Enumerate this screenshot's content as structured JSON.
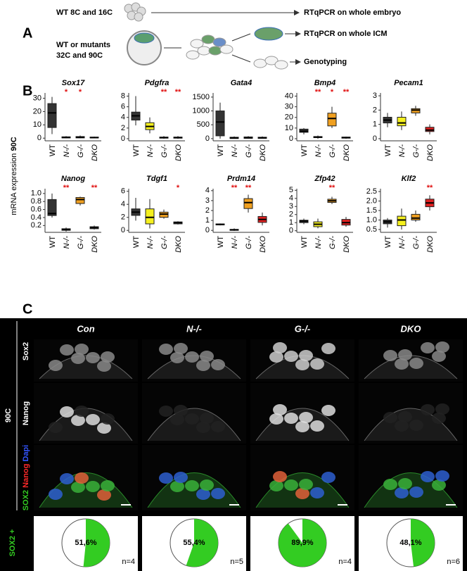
{
  "panel_a": {
    "label": "A",
    "row1_stage": "WT 8C and 16C",
    "row1_target": "RTqPCR on whole embryo",
    "row2_stage_1": "WT or mutants",
    "row2_stage_2": "32C and 90C",
    "icm_target": "RTqPCR on whole ICM",
    "geno_target": "Genotyping"
  },
  "panel_b": {
    "label": "B",
    "y_label": "mRNA expression",
    "y_label_stage": "90C"
  },
  "chart_data": [
    {
      "type": "box",
      "title": "Sox17",
      "categories": [
        "WT",
        "N-/-",
        "G-/-",
        "DKO"
      ],
      "boxes": [
        [
          3,
          8,
          19,
          26,
          31
        ],
        [
          0,
          0.2,
          0.5,
          1,
          1.5
        ],
        [
          0,
          0.2,
          0.6,
          1.2,
          2
        ],
        [
          0,
          0.2,
          0.4,
          0.8,
          1.2
        ]
      ],
      "colors": [
        "#333333",
        "#333333",
        "#333333",
        "#333333"
      ],
      "stars": [
        null,
        "*",
        "*",
        null
      ],
      "ylim": [
        -2,
        34
      ],
      "yticks": [
        0,
        10,
        20,
        30
      ]
    },
    {
      "type": "box",
      "title": "Pdgfra",
      "categories": [
        "WT",
        "N-/-",
        "G-/-",
        "DKO"
      ],
      "boxes": [
        [
          2.5,
          3.5,
          4.3,
          5,
          8
        ],
        [
          1,
          1.7,
          2.3,
          3,
          4
        ],
        [
          0,
          0.1,
          0.2,
          0.3,
          0.5
        ],
        [
          0,
          0.1,
          0.2,
          0.3,
          0.5
        ]
      ],
      "colors": [
        "#333333",
        "#f5f01e",
        "#333333",
        "#333333"
      ],
      "stars": [
        null,
        null,
        "**",
        "**"
      ],
      "ylim": [
        -0.4,
        8.6
      ],
      "yticks": [
        0,
        2,
        4,
        6,
        8
      ]
    },
    {
      "type": "box",
      "title": "Gata4",
      "categories": [
        "WT",
        "N-/-",
        "G-/-",
        "DKO"
      ],
      "boxes": [
        [
          0,
          100,
          600,
          1000,
          1300
        ],
        [
          0,
          5,
          20,
          50,
          80
        ],
        [
          0,
          10,
          30,
          60,
          90
        ],
        [
          0,
          10,
          25,
          50,
          80
        ]
      ],
      "colors": [
        "#333333",
        "#333333",
        "#333333",
        "#333333"
      ],
      "stars": [
        null,
        null,
        null,
        null
      ],
      "ylim": [
        -80,
        1650
      ],
      "yticks": [
        0,
        500,
        1000,
        1500
      ]
    },
    {
      "type": "box",
      "title": "Bmp4",
      "categories": [
        "WT",
        "N-/-",
        "G-/-",
        "DKO"
      ],
      "boxes": [
        [
          4,
          6,
          7,
          9,
          10
        ],
        [
          0,
          1,
          1.5,
          2,
          3
        ],
        [
          10,
          12,
          19,
          24,
          30
        ],
        [
          0,
          0.5,
          1,
          1.5,
          2
        ]
      ],
      "colors": [
        "#333333",
        "#333333",
        "#f0a020",
        "#333333"
      ],
      "stars": [
        null,
        "**",
        "*",
        "**"
      ],
      "ylim": [
        -2,
        43
      ],
      "yticks": [
        0,
        10,
        20,
        30,
        40
      ]
    },
    {
      "type": "box",
      "title": "Pecam1",
      "categories": [
        "WT",
        "N-/-",
        "G-/-",
        "DKO"
      ],
      "boxes": [
        [
          0.8,
          1.1,
          1.3,
          1.5,
          1.8
        ],
        [
          0.6,
          0.9,
          1.1,
          1.5,
          1.9
        ],
        [
          1.6,
          1.8,
          2,
          2.1,
          2.3
        ],
        [
          0.3,
          0.5,
          0.6,
          0.8,
          1
        ]
      ],
      "colors": [
        "#333333",
        "#f5f01e",
        "#f0a020",
        "#e02020"
      ],
      "stars": [
        null,
        null,
        null,
        null
      ],
      "ylim": [
        -0.15,
        3.2
      ],
      "yticks": [
        0,
        1,
        2,
        3
      ]
    },
    {
      "type": "box",
      "title": "Nanog",
      "categories": [
        "WT",
        "N-/-",
        "G-/-",
        "DKO"
      ],
      "boxes": [
        [
          0.4,
          0.45,
          0.5,
          0.85,
          1.0
        ],
        [
          0.05,
          0.08,
          0.1,
          0.12,
          0.15
        ],
        [
          0.7,
          0.75,
          0.85,
          0.9,
          0.92
        ],
        [
          0.1,
          0.12,
          0.15,
          0.17,
          0.2
        ]
      ],
      "colors": [
        "#333333",
        "#333333",
        "#f0a020",
        "#333333"
      ],
      "stars": [
        null,
        "**",
        null,
        "**"
      ],
      "ylim": [
        0.03,
        1.12
      ],
      "yticks": [
        0.2,
        0.4,
        0.6,
        0.8,
        {
          "value": 1,
          "label": "1.0"
        }
      ]
    },
    {
      "type": "box",
      "title": "Tdgf1",
      "categories": [
        "WT",
        "N-/-",
        "G-/-",
        "DKO"
      ],
      "boxes": [
        [
          1.5,
          2.3,
          2.8,
          3.3,
          5
        ],
        [
          0.3,
          1,
          2,
          3.3,
          4.8
        ],
        [
          1.8,
          2,
          2.5,
          2.8,
          3.2
        ],
        [
          0.9,
          1,
          1.2,
          1.3,
          1.4
        ]
      ],
      "colors": [
        "#333333",
        "#f5f01e",
        "#f0a020",
        "#333333"
      ],
      "stars": [
        null,
        null,
        null,
        "*"
      ],
      "ylim": [
        -0.3,
        6.4
      ],
      "yticks": [
        0,
        2,
        4,
        6
      ]
    },
    {
      "type": "box",
      "title": "Prdm14",
      "categories": [
        "WT",
        "N-/-",
        "G-/-",
        "DKO"
      ],
      "boxes": [
        [
          0.5,
          0.55,
          0.6,
          0.65,
          0.7
        ],
        [
          -0.05,
          0,
          0.05,
          0.1,
          0.2
        ],
        [
          1.8,
          2.2,
          2.8,
          3.2,
          3.6
        ],
        [
          0.5,
          0.8,
          1.1,
          1.4,
          1.8
        ]
      ],
      "colors": [
        "#333333",
        "#333333",
        "#f0a020",
        "#e02020"
      ],
      "stars": [
        null,
        "**",
        "**",
        null
      ],
      "ylim": [
        -0.2,
        4.2
      ],
      "yticks": [
        0,
        1,
        2,
        3,
        4
      ]
    },
    {
      "type": "box",
      "title": "Zfp42",
      "categories": [
        "WT",
        "N-/-",
        "G-/-",
        "DKO"
      ],
      "boxes": [
        [
          0.8,
          1,
          1.2,
          1.3,
          1.5
        ],
        [
          0.3,
          0.5,
          0.8,
          1.1,
          1.5
        ],
        [
          3.3,
          3.5,
          3.7,
          3.9,
          4.2
        ],
        [
          0.5,
          0.7,
          1,
          1.4,
          1.7
        ]
      ],
      "colors": [
        "#333333",
        "#f5f01e",
        "#f0a020",
        "#e02020"
      ],
      "stars": [
        null,
        null,
        "**",
        null
      ],
      "ylim": [
        -0.2,
        5.2
      ],
      "yticks": [
        0,
        1,
        2,
        3,
        4,
        5
      ]
    },
    {
      "type": "box",
      "title": "Klf2",
      "categories": [
        "WT",
        "N-/-",
        "G-/-",
        "DKO"
      ],
      "boxes": [
        [
          0.6,
          0.8,
          0.9,
          1,
          1.1
        ],
        [
          0.5,
          0.7,
          1,
          1.2,
          1.6
        ],
        [
          0.9,
          1,
          1.1,
          1.3,
          1.5
        ],
        [
          1.5,
          1.7,
          1.9,
          2.1,
          2.3
        ]
      ],
      "colors": [
        "#333333",
        "#f5f01e",
        "#f0a020",
        "#e02020"
      ],
      "stars": [
        null,
        null,
        null,
        "**"
      ],
      "ylim": [
        0.35,
        2.65
      ],
      "yticks": [
        0.5,
        {
          "value": 1,
          "label": "1.0"
        },
        1.5,
        {
          "value": 2,
          "label": "2.0"
        },
        2.5
      ]
    },
    {
      "type": "pie",
      "values": [
        51.6
      ],
      "value_labels": [
        "51,6%"
      ],
      "annotation": "n=4",
      "color": "#33cc22"
    },
    {
      "type": "pie",
      "values": [
        55.4
      ],
      "value_labels": [
        "55,4%"
      ],
      "annotation": "n=5",
      "color": "#33cc22"
    },
    {
      "type": "pie",
      "values": [
        89.9
      ],
      "value_labels": [
        "89,9%"
      ],
      "annotation": "n=4",
      "color": "#33cc22"
    },
    {
      "type": "pie",
      "values": [
        48.1
      ],
      "value_labels": [
        "48,1%"
      ],
      "annotation": "n=6",
      "color": "#33cc22"
    }
  ],
  "panel_c": {
    "label": "C",
    "columns": [
      "Con",
      "N-/-",
      "G-/-",
      "DKO"
    ],
    "stage": "90C",
    "rows": [
      "Sox2",
      "Nanog"
    ],
    "merge_label": [
      "SOX2",
      "Nanog",
      "Dapi"
    ],
    "pie_row_label": "SOX2 +"
  }
}
